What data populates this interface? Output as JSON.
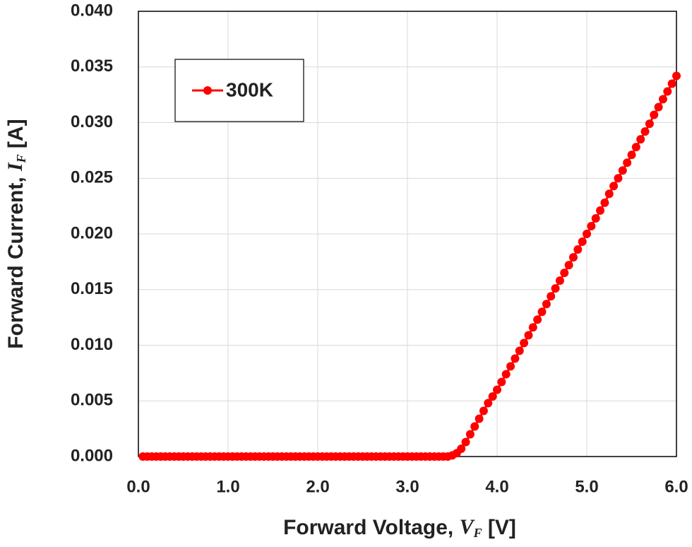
{
  "chart_data": {
    "type": "line",
    "xlabel": {
      "text": "Forward Voltage, ",
      "symbol": "V",
      "subscript": "F",
      "unit": " [V]"
    },
    "ylabel": {
      "text": "Forward Current, ",
      "symbol": "I",
      "subscript": "F",
      "unit": " [A]"
    },
    "x": [
      0.05,
      0.1,
      0.15,
      0.2,
      0.25,
      0.3,
      0.35,
      0.4,
      0.45,
      0.5,
      0.55,
      0.6,
      0.65,
      0.7,
      0.75,
      0.8,
      0.85,
      0.9,
      0.95,
      1,
      1.05,
      1.1,
      1.15,
      1.2,
      1.25,
      1.3,
      1.35,
      1.4,
      1.45,
      1.5,
      1.55,
      1.6,
      1.65,
      1.7,
      1.75,
      1.8,
      1.85,
      1.9,
      1.95,
      2,
      2.05,
      2.1,
      2.15,
      2.2,
      2.25,
      2.3,
      2.35,
      2.4,
      2.45,
      2.5,
      2.55,
      2.6,
      2.65,
      2.7,
      2.75,
      2.8,
      2.85,
      2.9,
      2.95,
      3,
      3.05,
      3.1,
      3.15,
      3.2,
      3.25,
      3.3,
      3.35,
      3.4,
      3.45,
      3.5,
      3.55,
      3.6,
      3.65,
      3.7,
      3.75,
      3.8,
      3.85,
      3.9,
      3.95,
      4,
      4.05,
      4.1,
      4.15,
      4.2,
      4.25,
      4.3,
      4.35,
      4.4,
      4.45,
      4.5,
      4.55,
      4.6,
      4.65,
      4.7,
      4.75,
      4.8,
      4.85,
      4.9,
      4.95,
      5,
      5.05,
      5.1,
      5.15,
      5.2,
      5.25,
      5.3,
      5.35,
      5.4,
      5.45,
      5.5,
      5.55,
      5.6,
      5.65,
      5.7,
      5.75,
      5.8,
      5.85,
      5.9,
      5.95,
      6
    ],
    "series": [
      {
        "name": "300K",
        "color": "#ff0000",
        "values": [
          0,
          0,
          0,
          0,
          0,
          0,
          0,
          0,
          0,
          0,
          0,
          0,
          0,
          0,
          0,
          0,
          0,
          0,
          0,
          0,
          0,
          0,
          0,
          0,
          0,
          0,
          0,
          0,
          0,
          0,
          0,
          0,
          0,
          0,
          0,
          0,
          0,
          0,
          0,
          0,
          0,
          0,
          0,
          0,
          0,
          0,
          0,
          0,
          0,
          0,
          0,
          0,
          0,
          0,
          0,
          0,
          0,
          0,
          0,
          0,
          0,
          0,
          0,
          0,
          0,
          0,
          0,
          0,
          0,
          0.0001,
          0.0003,
          0.0007,
          0.0013,
          0.002,
          0.0027,
          0.0034,
          0.0041,
          0.0048,
          0.0054,
          0.006,
          0.0067,
          0.0074,
          0.0081,
          0.0088,
          0.0095,
          0.0102,
          0.0109,
          0.0116,
          0.0123,
          0.013,
          0.0137,
          0.0144,
          0.0151,
          0.0158,
          0.0165,
          0.0172,
          0.0179,
          0.0186,
          0.0193,
          0.02,
          0.0207,
          0.0214,
          0.0221,
          0.0228,
          0.0236,
          0.0243,
          0.025,
          0.0257,
          0.0264,
          0.0271,
          0.0278,
          0.0285,
          0.0292,
          0.0299,
          0.0307,
          0.0314,
          0.0321,
          0.0328,
          0.0335,
          0.0342
        ]
      }
    ],
    "xlim": [
      0,
      6
    ],
    "xticks": [
      {
        "value": 0,
        "label": "0.0"
      },
      {
        "value": 1,
        "label": "1.0"
      },
      {
        "value": 2,
        "label": "2.0"
      },
      {
        "value": 3,
        "label": "3.0"
      },
      {
        "value": 4,
        "label": "4.0"
      },
      {
        "value": 5,
        "label": "5.0"
      },
      {
        "value": 6,
        "label": "6.0"
      }
    ],
    "ylim": [
      0,
      0.04
    ],
    "yticks": [
      {
        "value": 0,
        "label": "0.000"
      },
      {
        "value": 0.005,
        "label": "0.005"
      },
      {
        "value": 0.01,
        "label": "0.010"
      },
      {
        "value": 0.015,
        "label": "0.015"
      },
      {
        "value": 0.02,
        "label": "0.020"
      },
      {
        "value": 0.025,
        "label": "0.025"
      },
      {
        "value": 0.03,
        "label": "0.030"
      },
      {
        "value": 0.035,
        "label": "0.035"
      },
      {
        "value": 0.04,
        "label": "0.040"
      }
    ],
    "grid": true,
    "legend": "upper left"
  }
}
